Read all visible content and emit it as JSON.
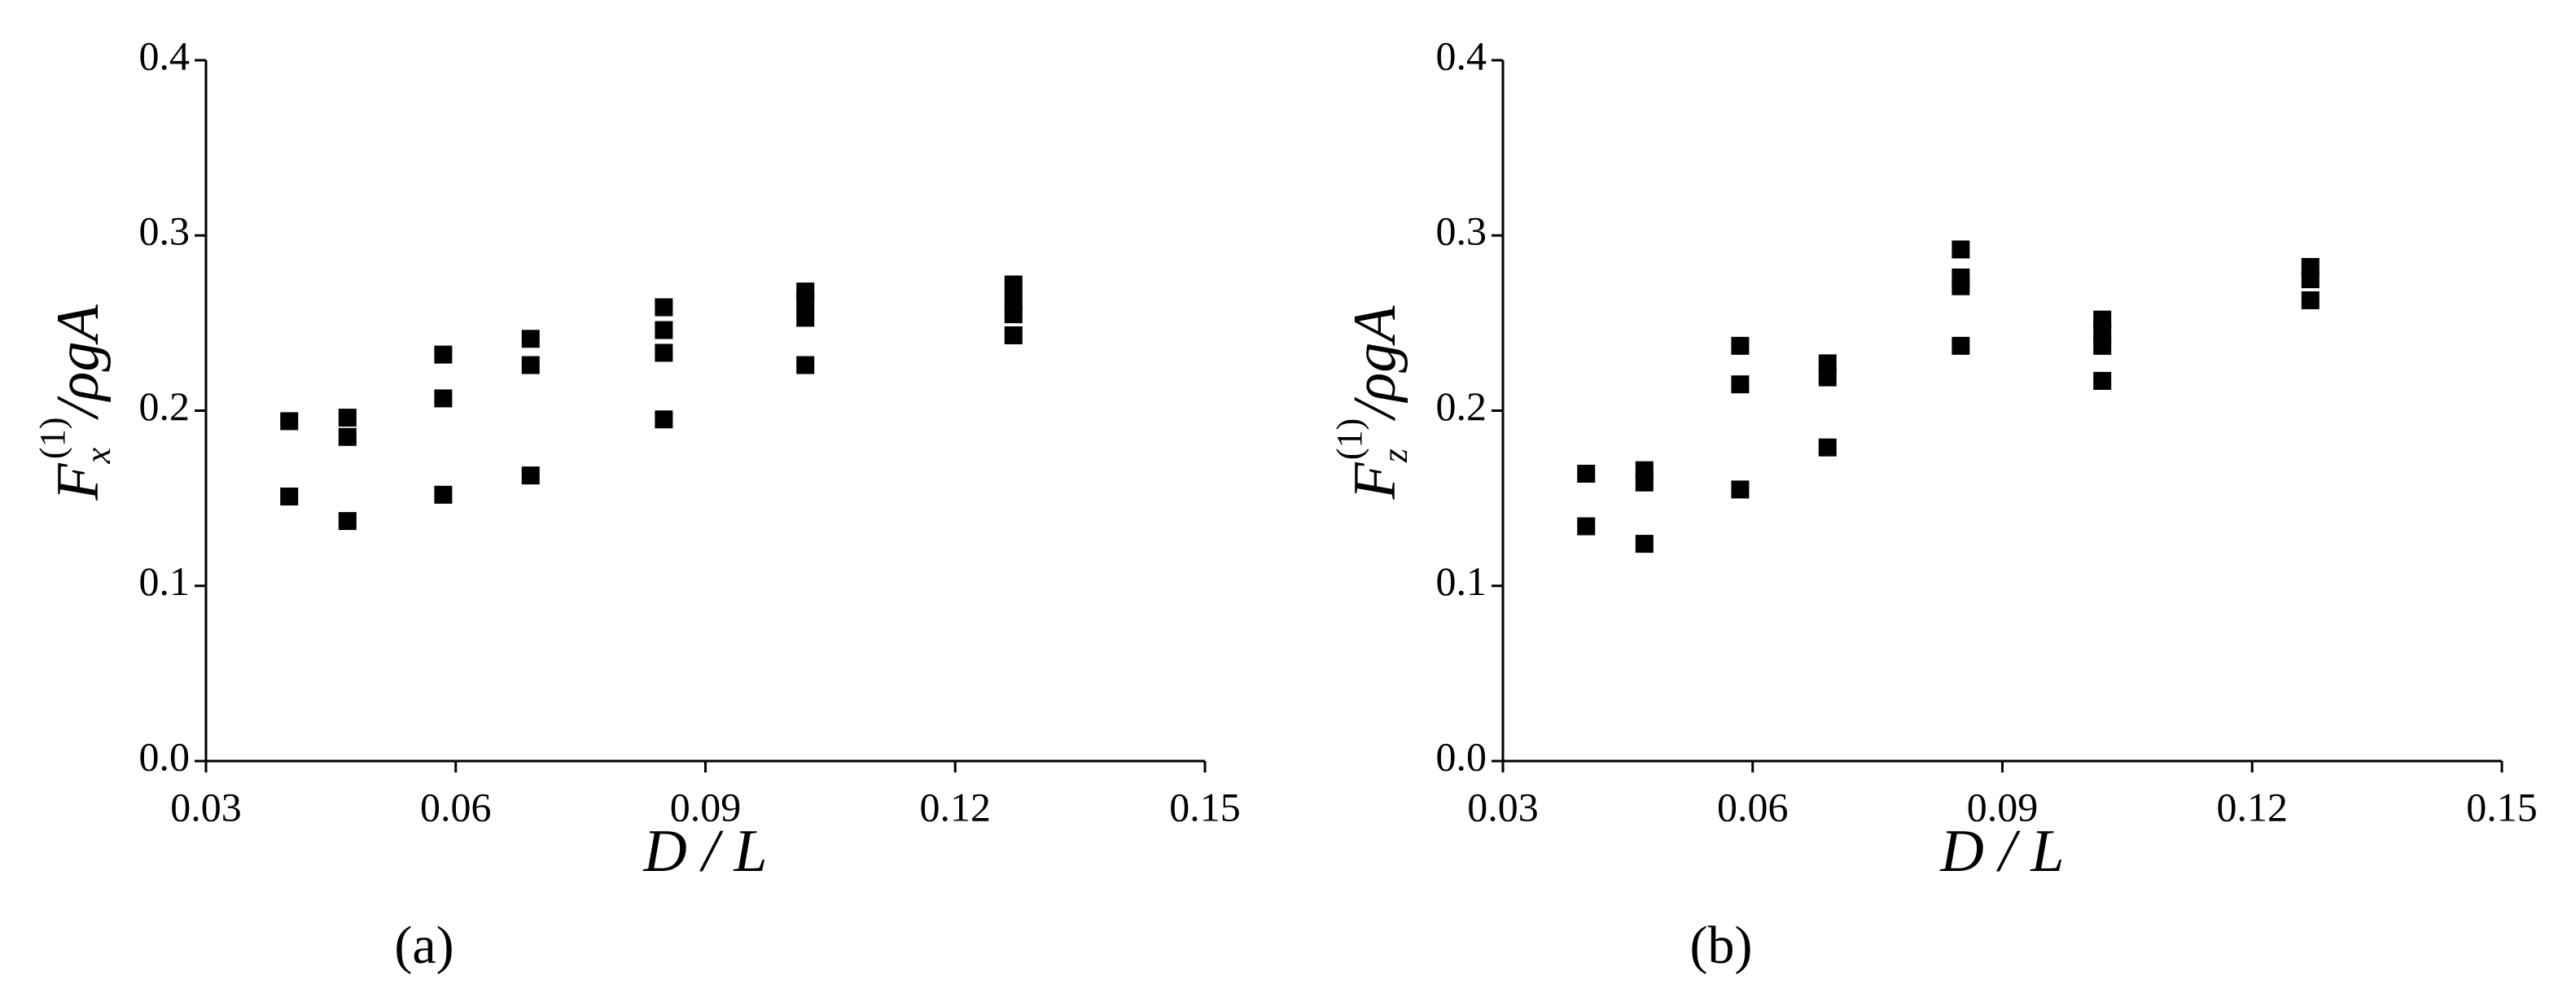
{
  "chart_data": [
    {
      "type": "scatter",
      "panel": "(a)",
      "xlabel": "D / L",
      "ylabel": [
        "F",
        "x",
        "(1)",
        "/ρgA"
      ],
      "xlim": [
        0.03,
        0.15
      ],
      "xticks": [
        0.03,
        0.06,
        0.09,
        0.12,
        0.15
      ],
      "ylim": [
        0,
        0.4
      ],
      "yticks": [
        {
          "value": 0,
          "label": "0.0"
        },
        0.1,
        0.2,
        0.3,
        0.4
      ],
      "series": [
        {
          "color": "#000000",
          "x": [
            0.04,
            0.04,
            0.047,
            0.047,
            0.047,
            0.0585,
            0.0585,
            0.0585,
            0.069,
            0.069,
            0.069,
            0.085,
            0.085,
            0.085,
            0.085,
            0.102,
            0.102,
            0.102,
            0.102,
            0.127,
            0.127,
            0.127,
            0.127
          ],
          "values": [
            0.194,
            0.151,
            0.196,
            0.185,
            0.137,
            0.232,
            0.207,
            0.152,
            0.241,
            0.226,
            0.163,
            0.259,
            0.246,
            0.233,
            0.195,
            0.268,
            0.263,
            0.253,
            0.226,
            0.272,
            0.263,
            0.255,
            0.243
          ]
        }
      ]
    },
    {
      "type": "scatter",
      "panel": "(b)",
      "xlabel": "D / L",
      "ylabel": [
        "F",
        "z",
        "(1)",
        "/ρgA"
      ],
      "xlim": [
        0.03,
        0.15
      ],
      "xticks": [
        0.03,
        0.06,
        0.09,
        0.12,
        0.15
      ],
      "ylim": [
        0,
        0.4
      ],
      "yticks": [
        {
          "value": 0,
          "label": "0.0"
        },
        0.1,
        0.2,
        0.3,
        0.4
      ],
      "series": [
        {
          "color": "#000000",
          "x": [
            0.04,
            0.04,
            0.047,
            0.047,
            0.047,
            0.0585,
            0.0585,
            0.0585,
            0.069,
            0.069,
            0.069,
            0.085,
            0.085,
            0.085,
            0.085,
            0.102,
            0.102,
            0.102,
            0.102,
            0.127,
            0.127,
            0.127
          ],
          "values": [
            0.164,
            0.134,
            0.166,
            0.159,
            0.124,
            0.237,
            0.215,
            0.155,
            0.227,
            0.219,
            0.179,
            0.292,
            0.276,
            0.271,
            0.237,
            0.252,
            0.245,
            0.237,
            0.217,
            0.282,
            0.275,
            0.263
          ]
        }
      ]
    }
  ]
}
